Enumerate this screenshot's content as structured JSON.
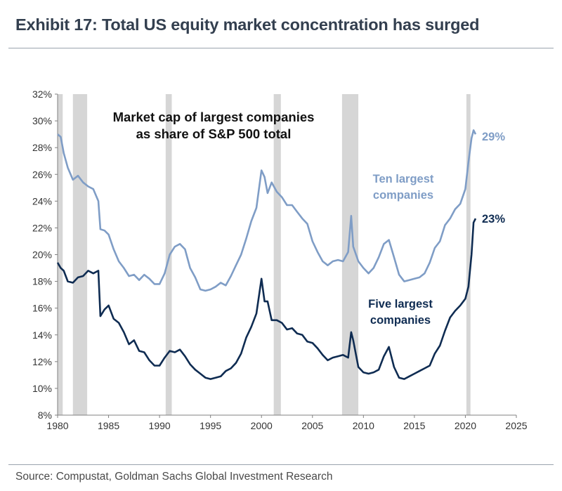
{
  "title": "Exhibit 17: Total US equity market concentration has surged",
  "source": "Source: Compustat, Goldman Sachs Global Investment Research",
  "colors": {
    "ten_largest": "#7f9dc6",
    "five_largest": "#0f2c52",
    "recession_band": "#d6d6d6",
    "axis": "#808080",
    "title_text": "#333f4f"
  },
  "chart_data": {
    "type": "line",
    "chart_title_lines": [
      "Market cap of largest companies",
      "as share of S&P 500 total"
    ],
    "xlim": [
      1980,
      2025
    ],
    "ylim": [
      8,
      32
    ],
    "x_ticks": [
      1980,
      1985,
      1990,
      1995,
      2000,
      2005,
      2010,
      2015,
      2020,
      2025
    ],
    "x_tick_labels": [
      "1980",
      "1985",
      "1990",
      "1995",
      "2000",
      "2005",
      "2010",
      "2015",
      "2020",
      "2025"
    ],
    "y_ticks": [
      8,
      10,
      12,
      14,
      16,
      18,
      20,
      22,
      24,
      26,
      28,
      30,
      32
    ],
    "y_tick_labels": [
      "8%",
      "10%",
      "12%",
      "14%",
      "16%",
      "18%",
      "20%",
      "22%",
      "24%",
      "26%",
      "28%",
      "30%",
      "32%"
    ],
    "grid": false,
    "recessions": [
      [
        1980.0,
        1980.5
      ],
      [
        1981.5,
        1982.9
      ],
      [
        1990.6,
        1991.2
      ],
      [
        2001.2,
        2001.9
      ],
      [
        2007.9,
        2009.5
      ],
      [
        2020.1,
        2020.5
      ]
    ],
    "series": [
      {
        "name": "Ten largest companies",
        "label_lines": [
          "Ten largest",
          "companies"
        ],
        "end_label": "29%",
        "points": [
          [
            1980.0,
            29.0
          ],
          [
            1980.3,
            28.8
          ],
          [
            1980.6,
            27.6
          ],
          [
            1981.0,
            26.5
          ],
          [
            1981.5,
            25.6
          ],
          [
            1982.0,
            25.9
          ],
          [
            1982.5,
            25.4
          ],
          [
            1983.0,
            25.1
          ],
          [
            1983.5,
            24.9
          ],
          [
            1984.0,
            24.0
          ],
          [
            1984.2,
            21.9
          ],
          [
            1984.6,
            21.8
          ],
          [
            1985.0,
            21.5
          ],
          [
            1985.5,
            20.4
          ],
          [
            1986.0,
            19.5
          ],
          [
            1986.5,
            19.0
          ],
          [
            1987.0,
            18.4
          ],
          [
            1987.5,
            18.5
          ],
          [
            1988.0,
            18.1
          ],
          [
            1988.5,
            18.5
          ],
          [
            1989.0,
            18.2
          ],
          [
            1989.5,
            17.8
          ],
          [
            1990.0,
            17.8
          ],
          [
            1990.5,
            18.6
          ],
          [
            1991.0,
            20.0
          ],
          [
            1991.5,
            20.6
          ],
          [
            1992.0,
            20.8
          ],
          [
            1992.5,
            20.4
          ],
          [
            1993.0,
            19.0
          ],
          [
            1993.5,
            18.3
          ],
          [
            1994.0,
            17.4
          ],
          [
            1994.5,
            17.3
          ],
          [
            1995.0,
            17.4
          ],
          [
            1995.5,
            17.6
          ],
          [
            1996.0,
            17.9
          ],
          [
            1996.5,
            17.7
          ],
          [
            1997.0,
            18.4
          ],
          [
            1997.5,
            19.2
          ],
          [
            1998.0,
            20.0
          ],
          [
            1998.5,
            21.2
          ],
          [
            1999.0,
            22.5
          ],
          [
            1999.5,
            23.5
          ],
          [
            2000.0,
            26.3
          ],
          [
            2000.3,
            25.8
          ],
          [
            2000.6,
            24.6
          ],
          [
            2001.0,
            25.4
          ],
          [
            2001.5,
            24.7
          ],
          [
            2002.0,
            24.3
          ],
          [
            2002.5,
            23.7
          ],
          [
            2003.0,
            23.7
          ],
          [
            2003.5,
            23.2
          ],
          [
            2004.0,
            22.7
          ],
          [
            2004.5,
            22.3
          ],
          [
            2005.0,
            21.0
          ],
          [
            2005.5,
            20.2
          ],
          [
            2006.0,
            19.5
          ],
          [
            2006.5,
            19.2
          ],
          [
            2007.0,
            19.5
          ],
          [
            2007.5,
            19.6
          ],
          [
            2008.0,
            19.5
          ],
          [
            2008.5,
            20.2
          ],
          [
            2008.8,
            22.9
          ],
          [
            2009.0,
            20.6
          ],
          [
            2009.5,
            19.5
          ],
          [
            2010.0,
            19.0
          ],
          [
            2010.5,
            18.6
          ],
          [
            2011.0,
            19.0
          ],
          [
            2011.5,
            19.8
          ],
          [
            2012.0,
            20.8
          ],
          [
            2012.5,
            21.1
          ],
          [
            2013.0,
            19.8
          ],
          [
            2013.5,
            18.5
          ],
          [
            2014.0,
            18.0
          ],
          [
            2014.5,
            18.1
          ],
          [
            2015.0,
            18.2
          ],
          [
            2015.5,
            18.3
          ],
          [
            2016.0,
            18.6
          ],
          [
            2016.5,
            19.4
          ],
          [
            2017.0,
            20.5
          ],
          [
            2017.5,
            21.0
          ],
          [
            2018.0,
            22.2
          ],
          [
            2018.5,
            22.7
          ],
          [
            2019.0,
            23.4
          ],
          [
            2019.5,
            23.8
          ],
          [
            2020.0,
            24.9
          ],
          [
            2020.3,
            26.9
          ],
          [
            2020.6,
            28.7
          ],
          [
            2020.8,
            29.3
          ],
          [
            2021.0,
            29.0
          ]
        ]
      },
      {
        "name": "Five largest companies",
        "label_lines": [
          "Five largest",
          "companies"
        ],
        "end_label": "23%",
        "points": [
          [
            1980.0,
            19.4
          ],
          [
            1980.3,
            19.0
          ],
          [
            1980.6,
            18.8
          ],
          [
            1981.0,
            18.0
          ],
          [
            1981.5,
            17.9
          ],
          [
            1982.0,
            18.3
          ],
          [
            1982.5,
            18.4
          ],
          [
            1983.0,
            18.8
          ],
          [
            1983.5,
            18.6
          ],
          [
            1984.0,
            18.8
          ],
          [
            1984.2,
            15.4
          ],
          [
            1984.6,
            15.9
          ],
          [
            1985.0,
            16.2
          ],
          [
            1985.5,
            15.2
          ],
          [
            1986.0,
            14.9
          ],
          [
            1986.5,
            14.2
          ],
          [
            1987.0,
            13.3
          ],
          [
            1987.5,
            13.6
          ],
          [
            1988.0,
            12.8
          ],
          [
            1988.5,
            12.7
          ],
          [
            1989.0,
            12.1
          ],
          [
            1989.5,
            11.7
          ],
          [
            1990.0,
            11.7
          ],
          [
            1990.5,
            12.3
          ],
          [
            1991.0,
            12.8
          ],
          [
            1991.5,
            12.7
          ],
          [
            1992.0,
            12.9
          ],
          [
            1992.5,
            12.4
          ],
          [
            1993.0,
            11.8
          ],
          [
            1993.5,
            11.4
          ],
          [
            1994.0,
            11.1
          ],
          [
            1994.5,
            10.8
          ],
          [
            1995.0,
            10.7
          ],
          [
            1995.5,
            10.8
          ],
          [
            1996.0,
            10.9
          ],
          [
            1996.5,
            11.3
          ],
          [
            1997.0,
            11.5
          ],
          [
            1997.5,
            11.9
          ],
          [
            1998.0,
            12.6
          ],
          [
            1998.5,
            13.8
          ],
          [
            1999.0,
            14.6
          ],
          [
            1999.5,
            15.6
          ],
          [
            2000.0,
            18.2
          ],
          [
            2000.3,
            16.5
          ],
          [
            2000.6,
            16.5
          ],
          [
            2001.0,
            15.1
          ],
          [
            2001.5,
            15.1
          ],
          [
            2002.0,
            14.9
          ],
          [
            2002.5,
            14.4
          ],
          [
            2003.0,
            14.5
          ],
          [
            2003.5,
            14.1
          ],
          [
            2004.0,
            14.0
          ],
          [
            2004.5,
            13.5
          ],
          [
            2005.0,
            13.4
          ],
          [
            2005.5,
            13.0
          ],
          [
            2006.0,
            12.5
          ],
          [
            2006.5,
            12.1
          ],
          [
            2007.0,
            12.3
          ],
          [
            2007.5,
            12.4
          ],
          [
            2008.0,
            12.5
          ],
          [
            2008.5,
            12.3
          ],
          [
            2008.8,
            14.2
          ],
          [
            2009.0,
            13.6
          ],
          [
            2009.5,
            11.6
          ],
          [
            2010.0,
            11.2
          ],
          [
            2010.5,
            11.1
          ],
          [
            2011.0,
            11.2
          ],
          [
            2011.5,
            11.4
          ],
          [
            2012.0,
            12.4
          ],
          [
            2012.5,
            13.1
          ],
          [
            2013.0,
            11.6
          ],
          [
            2013.5,
            10.8
          ],
          [
            2014.0,
            10.7
          ],
          [
            2014.5,
            10.9
          ],
          [
            2015.0,
            11.1
          ],
          [
            2015.5,
            11.3
          ],
          [
            2016.0,
            11.5
          ],
          [
            2016.5,
            11.7
          ],
          [
            2017.0,
            12.6
          ],
          [
            2017.5,
            13.2
          ],
          [
            2018.0,
            14.3
          ],
          [
            2018.5,
            15.3
          ],
          [
            2019.0,
            15.8
          ],
          [
            2019.5,
            16.2
          ],
          [
            2020.0,
            16.7
          ],
          [
            2020.3,
            17.6
          ],
          [
            2020.6,
            20.0
          ],
          [
            2020.8,
            22.4
          ],
          [
            2021.0,
            22.7
          ]
        ]
      }
    ]
  }
}
